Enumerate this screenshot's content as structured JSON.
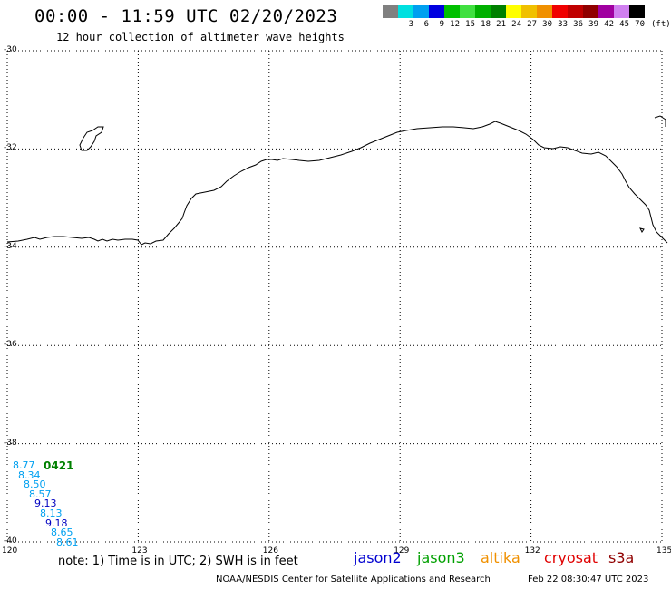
{
  "title": "00:00 - 11:59 UTC 02/20/2023",
  "subtitle": "12 hour collection of altimeter wave heights",
  "legend": {
    "units": "(ft)",
    "items": [
      {
        "label": "",
        "color": "#808080"
      },
      {
        "label": "3",
        "color": "#00e0e0"
      },
      {
        "label": "6",
        "color": "#00a0f0"
      },
      {
        "label": "9",
        "color": "#0000e0"
      },
      {
        "label": "12",
        "color": "#00c000"
      },
      {
        "label": "15",
        "color": "#40e040"
      },
      {
        "label": "18",
        "color": "#00b000"
      },
      {
        "label": "21",
        "color": "#008000"
      },
      {
        "label": "24",
        "color": "#ffff00"
      },
      {
        "label": "27",
        "color": "#f0c000"
      },
      {
        "label": "30",
        "color": "#f09000"
      },
      {
        "label": "33",
        "color": "#f00000"
      },
      {
        "label": "36",
        "color": "#c00000"
      },
      {
        "label": "39",
        "color": "#900000"
      },
      {
        "label": "42",
        "color": "#a000a0"
      },
      {
        "label": "45",
        "color": "#d080f0"
      },
      {
        "label": "70",
        "color": "#000000"
      }
    ]
  },
  "y_axis": {
    "ticks": [
      "-30",
      "-32",
      "-34",
      "-36",
      "-38",
      "-40"
    ],
    "values": [
      -30,
      -32,
      -34,
      -36,
      -38,
      -40
    ]
  },
  "x_axis": {
    "ticks": [
      "120",
      "123",
      "126",
      "129",
      "132",
      "135"
    ],
    "values": [
      120,
      123,
      126,
      129,
      132,
      135
    ]
  },
  "map_extent": {
    "lon": [
      120,
      135
    ],
    "lat": [
      -40,
      -30
    ]
  },
  "wave_heights": [
    {
      "text": "8.77",
      "color": "#00a0f0"
    },
    {
      "text": "8.34",
      "color": "#00a0f0"
    },
    {
      "text": "8.50",
      "color": "#00a0f0"
    },
    {
      "text": "8.57",
      "color": "#00a0f0"
    },
    {
      "text": "9.13",
      "color": "#0000c0"
    },
    {
      "text": "8.13",
      "color": "#00a0f0"
    },
    {
      "text": "9.18",
      "color": "#0000c0"
    },
    {
      "text": "8.65",
      "color": "#00a0f0"
    },
    {
      "text": "8.61",
      "color": "#00a0f0"
    }
  ],
  "pass_time": "0421",
  "note": "note: 1) Time is in UTC; 2) SWH is in feet",
  "satellites": [
    {
      "name": "jason2",
      "color": "#0000d0"
    },
    {
      "name": "jason3",
      "color": "#00a000"
    },
    {
      "name": "altika",
      "color": "#f09000"
    },
    {
      "name": "cryosat",
      "color": "#e00000"
    },
    {
      "name": "s3a",
      "color": "#900000"
    }
  ],
  "footer_left": "NOAA/NESDIS Center for Satellite Applications and Research",
  "footer_right": "Feb 22 08:30:47 UTC 2023"
}
